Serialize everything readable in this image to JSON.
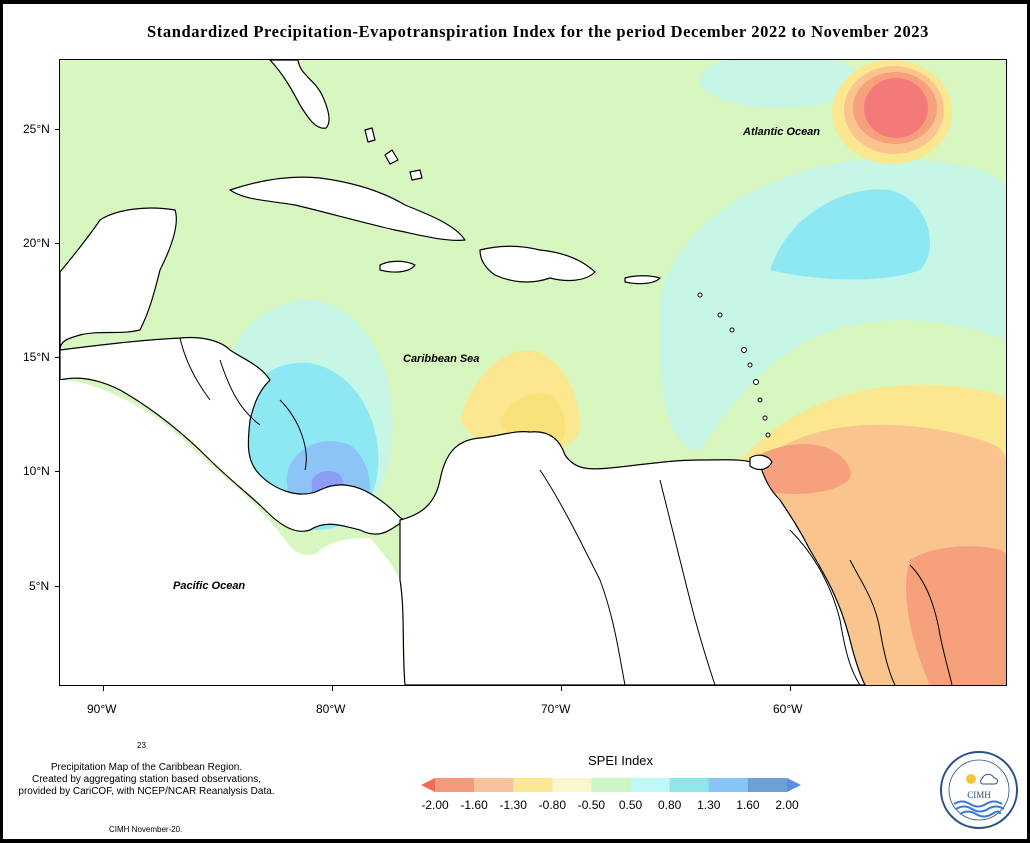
{
  "title": "Standardized Precipitation-Evapotranspiration Index for the period December 2022 to November 2023",
  "map": {
    "ocean_labels": {
      "atlantic": "Atlantic Ocean",
      "caribbean": "Caribbean Sea",
      "pacific": "Pacific Ocean"
    },
    "lat_labels": [
      "25°N",
      "20°N",
      "15°N",
      "10°N",
      "5°N"
    ],
    "lon_labels": [
      "90°W",
      "80°W",
      "70°W",
      "60°W"
    ],
    "colors": {
      "background": "#d8f7c0",
      "land": "#ffffff",
      "dry_strong": "#f47a7a",
      "dry_moderate": "#f6a07c",
      "dry_mild": "#f9c48e",
      "dry_slight": "#fbe790",
      "wet_slight": "#c6f6e6",
      "wet_mild": "#a8f0ec",
      "wet_moderate": "#8de8f4",
      "wet_strong": "#8cc4f8",
      "wet_severe": "#8c9df4"
    }
  },
  "legend": {
    "title": "SPEI Index",
    "labels": [
      "-2.00",
      "-1.60",
      "-1.30",
      "-0.80",
      "-0.50",
      "0.50",
      "0.80",
      "1.30",
      "1.60",
      "2.00"
    ],
    "colors": [
      "#f46a5a",
      "#f29a7a",
      "#f8c29c",
      "#fbe894",
      "#fbf6cf",
      "#cdf6c6",
      "#bff8f6",
      "#8ee6e6",
      "#86c6f6",
      "#6c9fd6",
      "#5a8ee6"
    ]
  },
  "footer": {
    "number": "23",
    "description_lines": [
      "Precipitation Map of the Caribbean Region.",
      "Created by aggregating station based observations,",
      "provided by CariCOF, with NCEP/NCAR Reanalysis Data."
    ],
    "credit": "CIMH November-20."
  },
  "logo": {
    "text": "CIMH"
  }
}
